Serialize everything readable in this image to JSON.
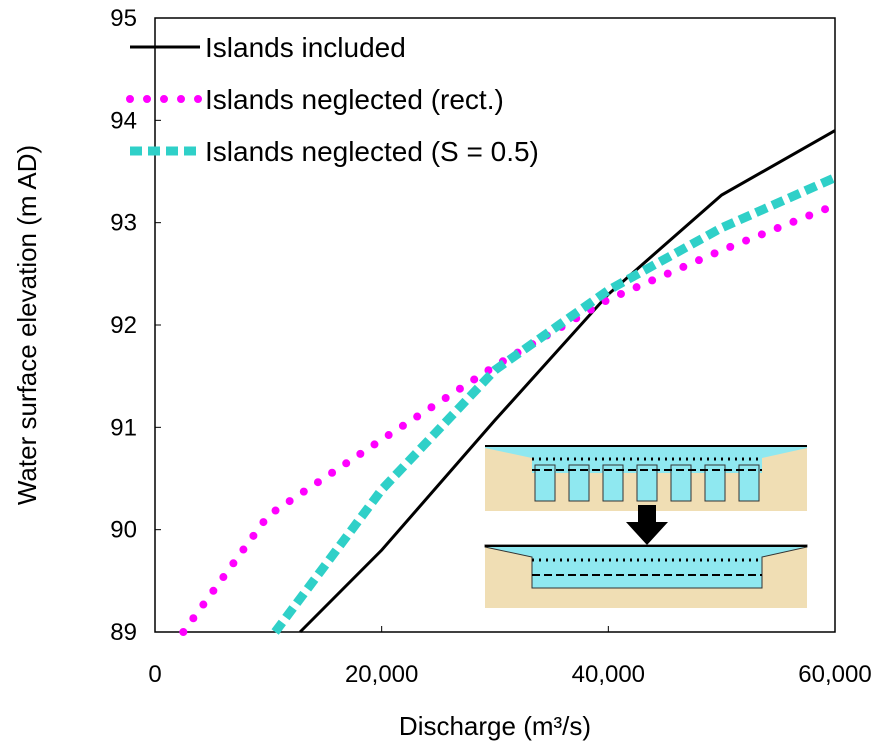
{
  "chart_data": {
    "type": "line",
    "x_label": "Discharge (m³/s)",
    "y_label": "Water surface elevation (m AD)",
    "xlim": [
      0,
      60000
    ],
    "xticks": [
      0,
      {
        "value": 20000,
        "label": "20,000"
      },
      {
        "value": 40000,
        "label": "40,000"
      },
      {
        "value": 60000,
        "label": "60,000"
      }
    ],
    "ylim": [
      89,
      95
    ],
    "yticks": [
      89,
      90,
      91,
      92,
      93,
      94,
      95
    ],
    "legend": "upper left",
    "series": [
      {
        "name": "Islands included",
        "color": "#000000",
        "style": "solid",
        "x": [
          12800,
          20000,
          30000,
          40000,
          50000,
          60000
        ],
        "values": [
          89,
          89.8,
          91.07,
          92.3,
          93.27,
          93.9
        ]
      },
      {
        "name": "Islands neglected (rect.)",
        "color": "#ff00ff",
        "style": "dotted",
        "x": [
          2500,
          10000,
          20000,
          30000,
          40000,
          50000,
          60000
        ],
        "values": [
          89,
          90.14,
          90.88,
          91.6,
          92.25,
          92.73,
          93.17
        ]
      },
      {
        "name": "Islands neglected (S = 0.5)",
        "color": "#2fd0c8",
        "style": "dashed",
        "x": [
          10600,
          20000,
          30000,
          40000,
          50000,
          60000
        ],
        "values": [
          89,
          90.39,
          91.56,
          92.34,
          92.95,
          93.44
        ]
      }
    ]
  }
}
